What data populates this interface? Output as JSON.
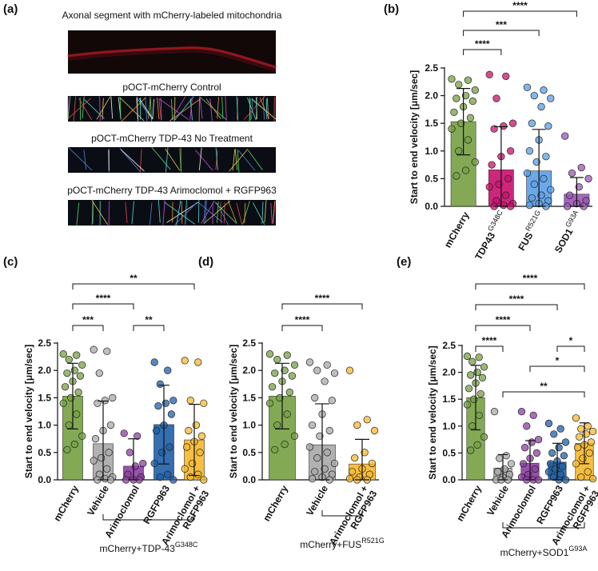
{
  "image_panel": {
    "label": "(a)",
    "captions": [
      "Axonal segment  with mCherry-labeled mitochondria",
      "pOCT-mCherry Control",
      "pOCT-mCherry TDP-43 No Treatment",
      "pOCT-mCherry TDP-43 Arimoclomol + RGFP963"
    ]
  },
  "chart_data": [
    {
      "type": "bar",
      "label": "(b)",
      "ylabel": "Start to end velocity [μm/sec]",
      "categories": [
        {
          "lines": [
            "mCherry"
          ]
        },
        {
          "lines": [
            "TDP43"
          ],
          "sup": "G348C"
        },
        {
          "lines": [
            "FUS"
          ],
          "sup": "R521G"
        },
        {
          "lines": [
            "SOD1"
          ],
          "sup": "G93A"
        }
      ],
      "colors": [
        "#76a043",
        "#c8106e",
        "#5b9ee6",
        "#9b55b5"
      ],
      "values": [
        1.53,
        0.66,
        0.64,
        0.22
      ],
      "errors": [
        0.6,
        0.78,
        0.75,
        0.3
      ],
      "points": [
        [
          2.3,
          2.28,
          2.2,
          2.1,
          2.0,
          1.95,
          1.9,
          1.8,
          1.7,
          1.6,
          1.5,
          1.4,
          1.2,
          1.0,
          0.8,
          0.65,
          0.55
        ],
        [
          2.38,
          2.35,
          1.95,
          1.5,
          1.45,
          1.4,
          1.0,
          0.9,
          0.75,
          0.5,
          0.4,
          0.35,
          0.2,
          0.1,
          0.05,
          0.02,
          0.0,
          0.0
        ],
        [
          2.15,
          2.1,
          2.0,
          1.95,
          1.8,
          1.5,
          1.45,
          1.2,
          1.0,
          0.9,
          0.8,
          0.6,
          0.5,
          0.4,
          0.3,
          0.2,
          0.15,
          0.1,
          0.05,
          0.02,
          0.0
        ],
        [
          1.27,
          0.7,
          0.6,
          0.5,
          0.35,
          0.2,
          0.1,
          0.05,
          0.0,
          0.0
        ]
      ],
      "ylim": [
        0,
        2.5
      ],
      "yticks": [
        {
          "value": 0,
          "label": "0.0"
        },
        0.5,
        {
          "value": 1,
          "label": "1.0"
        },
        1.5,
        {
          "value": 2,
          "label": "2.0"
        },
        2.5
      ],
      "comparisons": [
        {
          "pair": [
            0,
            3
          ],
          "label": "****"
        },
        {
          "pair": [
            0,
            2
          ],
          "label": "***"
        },
        {
          "pair": [
            0,
            1
          ],
          "label": "****"
        }
      ]
    },
    {
      "type": "bar",
      "label": "(c)",
      "ylabel": "Start to end velocity [μm/sec]",
      "categories": [
        {
          "lines": [
            "mCherry"
          ]
        },
        {
          "lines": [
            "Vehicle"
          ]
        },
        {
          "lines": [
            "Arimoclomol"
          ]
        },
        {
          "lines": [
            "RGFP963"
          ]
        },
        {
          "lines": [
            "Arimoclomol +",
            "RGFP963"
          ]
        }
      ],
      "colors": [
        "#76a043",
        "#a8a8a8",
        "#8e3fa3",
        "#1f5fa8",
        "#f5b82e"
      ],
      "values": [
        1.53,
        0.66,
        0.25,
        1.01,
        0.73
      ],
      "errors": [
        0.6,
        0.78,
        0.5,
        0.72,
        0.65
      ],
      "points": [
        [
          2.3,
          2.28,
          2.2,
          2.1,
          2.0,
          1.95,
          1.9,
          1.8,
          1.7,
          1.6,
          1.5,
          1.4,
          1.2,
          1.0,
          0.8,
          0.65,
          0.55
        ],
        [
          2.38,
          2.35,
          1.95,
          1.5,
          1.45,
          1.4,
          1.0,
          0.9,
          0.75,
          0.5,
          0.4,
          0.35,
          0.2,
          0.1,
          0.05,
          0.02,
          0.0,
          0.0
        ],
        [
          0.85,
          0.8,
          0.5,
          0.3,
          0.25,
          0.1,
          0.05,
          0.0,
          0.0,
          0.0
        ],
        [
          2.15,
          2.0,
          1.75,
          1.45,
          1.4,
          1.35,
          1.2,
          1.0,
          0.9,
          0.6,
          0.5,
          0.3,
          0.1,
          0.05,
          0.0
        ],
        [
          2.18,
          2.15,
          1.45,
          1.4,
          1.0,
          0.9,
          0.8,
          0.7,
          0.6,
          0.5,
          0.3,
          0.2,
          0.1,
          0.05,
          0.0
        ]
      ],
      "ylim": [
        0,
        2.5
      ],
      "yticks": [
        {
          "value": 0,
          "label": "0.0"
        },
        0.5,
        {
          "value": 1,
          "label": "1.0"
        },
        1.5,
        {
          "value": 2,
          "label": "2.0"
        },
        2.5
      ],
      "comparisons": [
        {
          "pair": [
            0,
            4
          ],
          "label": "**"
        },
        {
          "pair": [
            0,
            2
          ],
          "label": "****"
        },
        {
          "pair": [
            0,
            1
          ],
          "label": "***"
        },
        {
          "pair": [
            2,
            3
          ],
          "label": "**"
        }
      ],
      "group_label": {
        "text": "mCherry+TDP-43",
        "sup": "G348C"
      }
    },
    {
      "type": "bar",
      "label": "(d)",
      "ylabel": "Start to end velocity [μm/sec]",
      "categories": [
        {
          "lines": [
            "mCherry"
          ]
        },
        {
          "lines": [
            "Vehicle"
          ]
        },
        {
          "lines": [
            "Arimoclomol +",
            "RGFP963"
          ]
        }
      ],
      "colors": [
        "#76a043",
        "#a8a8a8",
        "#f5b82e"
      ],
      "values": [
        1.53,
        0.64,
        0.29
      ],
      "errors": [
        0.6,
        0.75,
        0.45
      ],
      "points": [
        [
          2.3,
          2.28,
          2.2,
          2.1,
          2.0,
          1.95,
          1.9,
          1.8,
          1.7,
          1.6,
          1.5,
          1.4,
          1.2,
          1.0,
          0.8,
          0.65,
          0.55
        ],
        [
          2.15,
          2.1,
          2.0,
          1.95,
          1.8,
          1.5,
          1.45,
          1.2,
          1.0,
          0.9,
          0.8,
          0.6,
          0.5,
          0.4,
          0.3,
          0.2,
          0.15,
          0.1,
          0.05,
          0.02,
          0.0
        ],
        [
          2.0,
          1.1,
          1.0,
          0.9,
          0.5,
          0.4,
          0.3,
          0.2,
          0.15,
          0.1,
          0.05,
          0.02,
          0.0,
          0.0
        ]
      ],
      "ylim": [
        0,
        2.5
      ],
      "yticks": [
        {
          "value": 0,
          "label": "0.0"
        },
        0.5,
        {
          "value": 1,
          "label": "1.0"
        },
        1.5,
        {
          "value": 2,
          "label": "2.0"
        },
        2.5
      ],
      "comparisons": [
        {
          "pair": [
            0,
            2
          ],
          "label": "****"
        },
        {
          "pair": [
            0,
            1
          ],
          "label": "****"
        }
      ],
      "group_label": {
        "text": "mCherry+FUS",
        "sup": "R521G"
      }
    },
    {
      "type": "bar",
      "label": "(e)",
      "ylabel": "Start to end velocity [μm/sec]",
      "categories": [
        {
          "lines": [
            "mCherry"
          ]
        },
        {
          "lines": [
            "Vehicle"
          ]
        },
        {
          "lines": [
            "Arimoclomol"
          ]
        },
        {
          "lines": [
            "RGFP963"
          ]
        },
        {
          "lines": [
            "Arimoclomol +",
            "RGFP963"
          ]
        }
      ],
      "colors": [
        "#76a043",
        "#a8a8a8",
        "#8e3fa3",
        "#1f5fa8",
        "#f5b82e"
      ],
      "values": [
        1.53,
        0.22,
        0.31,
        0.33,
        0.68
      ],
      "errors": [
        0.6,
        0.25,
        0.42,
        0.35,
        0.38
      ],
      "points": [
        [
          2.3,
          2.28,
          2.2,
          2.1,
          2.0,
          1.95,
          1.9,
          1.8,
          1.7,
          1.6,
          1.5,
          1.4,
          1.2,
          1.0,
          0.8,
          0.65,
          0.55
        ],
        [
          1.27,
          0.45,
          0.4,
          0.3,
          0.2,
          0.15,
          0.1,
          0.05,
          0.0,
          0.0,
          0.0
        ],
        [
          1.27,
          1.2,
          1.0,
          0.75,
          0.7,
          0.6,
          0.5,
          0.4,
          0.3,
          0.2,
          0.1,
          0.05,
          0.0,
          0.0,
          0.0
        ],
        [
          1.05,
          0.95,
          0.85,
          0.7,
          0.6,
          0.5,
          0.45,
          0.35,
          0.3,
          0.25,
          0.2,
          0.15,
          0.1,
          0.05,
          0.0,
          0.0
        ],
        [
          1.15,
          1.0,
          0.95,
          0.9,
          0.85,
          0.8,
          0.7,
          0.65,
          0.6,
          0.5,
          0.4,
          0.3,
          0.15,
          0.05,
          0.02
        ]
      ],
      "ylim": [
        0,
        2.5
      ],
      "yticks": [
        {
          "value": 0,
          "label": "0.0"
        },
        0.5,
        {
          "value": 1,
          "label": "1.0"
        },
        1.5,
        {
          "value": 2,
          "label": "2.0"
        },
        2.5
      ],
      "comparisons": [
        {
          "pair": [
            0,
            4
          ],
          "label": "****"
        },
        {
          "pair": [
            0,
            3
          ],
          "label": "****"
        },
        {
          "pair": [
            0,
            2
          ],
          "label": "****"
        },
        {
          "pair": [
            0,
            1
          ],
          "label": "****"
        },
        {
          "pair": [
            3,
            4
          ],
          "label": "*"
        },
        {
          "pair": [
            2,
            4
          ],
          "label": "*"
        },
        {
          "pair": [
            1,
            4
          ],
          "label": "**"
        }
      ],
      "group_label": {
        "text": "mCherry+SOD1",
        "sup": "G93A"
      }
    }
  ]
}
